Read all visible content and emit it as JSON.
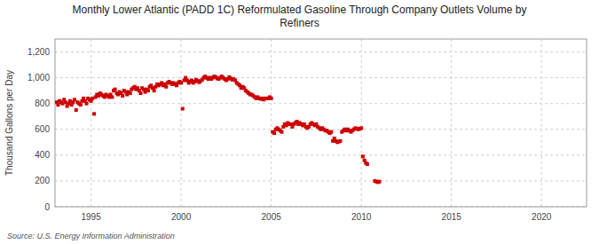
{
  "chart_data": {
    "type": "scatter",
    "title": "Monthly Lower Atlantic (PADD 1C) Reformulated Gasoline Through Company Outlets Volume by\nRefiners",
    "ylabel": "Thousand Gallons per Day",
    "annotations": [
      "Source: U.S. Energy Information Administration"
    ],
    "color": "#cc0000",
    "marker": "square",
    "grid": true,
    "xlim": [
      1993.0,
      2022.5
    ],
    "ylim": [
      0,
      1300
    ],
    "xticks": [
      1995,
      2000,
      2005,
      2010,
      2015,
      2020
    ],
    "yticks": [
      0,
      200,
      400,
      600,
      800,
      {
        "value": 1000,
        "label": "1,000"
      },
      {
        "value": 1200,
        "label": "1,200"
      }
    ],
    "x": [
      1993.08,
      1993.17,
      1993.25,
      1993.33,
      1993.42,
      1993.5,
      1993.58,
      1993.67,
      1993.75,
      1993.83,
      1993.92,
      1994,
      1994.08,
      1994.17,
      1994.25,
      1994.33,
      1994.42,
      1994.5,
      1994.58,
      1994.67,
      1994.75,
      1994.83,
      1994.92,
      1995,
      1995.08,
      1995.17,
      1995.25,
      1995.33,
      1995.42,
      1995.5,
      1995.58,
      1995.67,
      1995.75,
      1995.83,
      1995.92,
      1996,
      1996.08,
      1996.17,
      1996.25,
      1996.33,
      1996.42,
      1996.5,
      1996.58,
      1996.67,
      1996.75,
      1996.83,
      1996.92,
      1997,
      1997.08,
      1997.17,
      1997.25,
      1997.33,
      1997.42,
      1997.5,
      1997.58,
      1997.67,
      1997.75,
      1997.83,
      1997.92,
      1998,
      1998.08,
      1998.17,
      1998.25,
      1998.33,
      1998.42,
      1998.5,
      1998.58,
      1998.67,
      1998.75,
      1998.83,
      1998.92,
      1999,
      1999.08,
      1999.17,
      1999.25,
      1999.33,
      1999.42,
      1999.5,
      1999.58,
      1999.67,
      1999.75,
      1999.83,
      1999.92,
      2000,
      2000.08,
      2000.17,
      2000.25,
      2000.33,
      2000.42,
      2000.5,
      2000.58,
      2000.67,
      2000.75,
      2000.83,
      2000.92,
      2001,
      2001.08,
      2001.17,
      2001.25,
      2001.33,
      2001.42,
      2001.5,
      2001.58,
      2001.67,
      2001.75,
      2001.83,
      2001.92,
      2002,
      2002.08,
      2002.17,
      2002.25,
      2002.33,
      2002.42,
      2002.5,
      2002.58,
      2002.67,
      2002.75,
      2002.83,
      2002.92,
      2003,
      2003.08,
      2003.17,
      2003.25,
      2003.33,
      2003.42,
      2003.5,
      2003.58,
      2003.67,
      2003.75,
      2003.83,
      2003.92,
      2004,
      2004.08,
      2004.17,
      2004.25,
      2004.33,
      2004.42,
      2004.5,
      2004.58,
      2004.67,
      2004.75,
      2004.83,
      2004.92,
      2005,
      2005.08,
      2005.17,
      2005.25,
      2005.33,
      2005.42,
      2005.5,
      2005.58,
      2005.67,
      2005.75,
      2005.83,
      2005.92,
      2006,
      2006.08,
      2006.17,
      2006.25,
      2006.33,
      2006.42,
      2006.5,
      2006.58,
      2006.67,
      2006.75,
      2006.83,
      2006.92,
      2007,
      2007.08,
      2007.17,
      2007.25,
      2007.33,
      2007.42,
      2007.5,
      2007.58,
      2007.67,
      2007.75,
      2007.83,
      2007.92,
      2008,
      2008.08,
      2008.17,
      2008.25,
      2008.33,
      2008.42,
      2008.5,
      2008.58,
      2008.67,
      2008.75,
      2008.83,
      2008.92,
      2009,
      2009.08,
      2009.17,
      2009.25,
      2009.33,
      2009.42,
      2009.5,
      2009.58,
      2009.67,
      2009.75,
      2009.83,
      2009.92,
      2010,
      2010.08,
      2010.17,
      2010.25,
      2010.33,
      2010.75,
      2010.83,
      2010.92,
      2011
    ],
    "values": [
      810,
      790,
      820,
      810,
      800,
      830,
      810,
      780,
      800,
      820,
      790,
      810,
      830,
      750,
      810,
      800,
      790,
      820,
      840,
      820,
      800,
      840,
      830,
      820,
      840,
      720,
      850,
      870,
      860,
      880,
      870,
      860,
      850,
      870,
      860,
      850,
      870,
      850,
      900,
      910,
      880,
      870,
      890,
      880,
      860,
      900,
      890,
      870,
      890,
      880,
      910,
      920,
      930,
      910,
      920,
      900,
      880,
      920,
      910,
      890,
      910,
      900,
      930,
      940,
      920,
      900,
      930,
      950,
      940,
      950,
      960,
      940,
      950,
      930,
      960,
      970,
      960,
      950,
      960,
      950,
      940,
      960,
      970,
      960,
      760,
      980,
      1000,
      980,
      960,
      970,
      980,
      960,
      970,
      985,
      975,
      965,
      975,
      985,
      1000,
      1010,
      1000,
      990,
      1000,
      990,
      1000,
      1010,
      1005,
      995,
      990,
      1000,
      1010,
      1000,
      990,
      980,
      990,
      1005,
      995,
      985,
      990,
      980,
      960,
      950,
      940,
      920,
      930,
      920,
      900,
      890,
      880,
      870,
      870,
      860,
      850,
      840,
      850,
      840,
      835,
      840,
      830,
      840,
      840,
      840,
      850,
      840,
      580,
      570,
      600,
      610,
      600,
      590,
      580,
      620,
      640,
      630,
      650,
      640,
      640,
      620,
      640,
      650,
      660,
      640,
      650,
      640,
      630,
      640,
      620,
      610,
      620,
      640,
      650,
      640,
      630,
      640,
      620,
      610,
      600,
      610,
      600,
      590,
      590,
      580,
      570,
      580,
      510,
      530,
      510,
      500,
      505,
      510,
      580,
      590,
      600,
      590,
      600,
      590,
      580,
      590,
      600,
      610,
      605,
      600,
      605,
      610,
      390,
      360,
      340,
      330,
      200,
      195,
      190,
      195
    ]
  }
}
